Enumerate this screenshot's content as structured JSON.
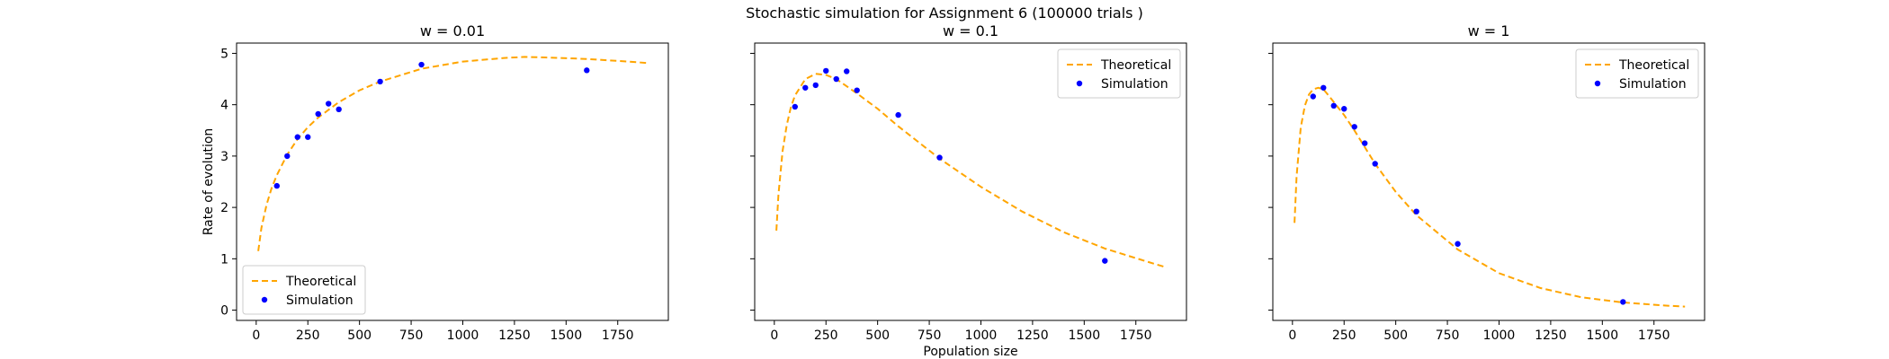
{
  "figure": {
    "suptitle": "Stochastic simulation for Assignment 6 (100000 trials )"
  },
  "colors": {
    "theoretical": "#ffa500",
    "simulation": "#0000ff",
    "axes": "#000000"
  },
  "chart_data": [
    {
      "type": "line+scatter",
      "title": "w = 0.01",
      "xlabel": "",
      "ylabel": "Rate of evolution",
      "xlim": [
        -95,
        1995
      ],
      "ylim": [
        -0.2,
        5.2
      ],
      "xticks": [
        0,
        250,
        500,
        750,
        1000,
        1250,
        1500,
        1750
      ],
      "yticks": [
        0,
        1,
        2,
        3,
        4,
        5
      ],
      "show_ytick_labels": true,
      "legend": {
        "position": "lower-left",
        "entries": [
          "Theoretical",
          "Simulation"
        ]
      },
      "series": [
        {
          "name": "Theoretical",
          "style": "dashed-line",
          "x": [
            10,
            25,
            50,
            75,
            100,
            150,
            200,
            250,
            300,
            400,
            500,
            600,
            800,
            1000,
            1200,
            1300,
            1400,
            1600,
            1800,
            1900
          ],
          "y": [
            1.15,
            1.6,
            2.05,
            2.38,
            2.63,
            3.03,
            3.33,
            3.56,
            3.75,
            4.05,
            4.28,
            4.45,
            4.7,
            4.84,
            4.91,
            4.93,
            4.92,
            4.89,
            4.84,
            4.81
          ]
        },
        {
          "name": "Simulation",
          "style": "points",
          "x": [
            100,
            150,
            200,
            250,
            300,
            350,
            400,
            600,
            800,
            1600
          ],
          "y": [
            2.42,
            3.0,
            3.37,
            3.37,
            3.82,
            4.02,
            3.91,
            4.45,
            4.78,
            4.67
          ]
        }
      ]
    },
    {
      "type": "line+scatter",
      "title": "w = 0.1",
      "xlabel": "Population size",
      "ylabel": "",
      "xlim": [
        -95,
        1995
      ],
      "ylim": [
        -0.2,
        5.2
      ],
      "xticks": [
        0,
        250,
        500,
        750,
        1000,
        1250,
        1500,
        1750
      ],
      "yticks": [
        0,
        1,
        2,
        3,
        4,
        5
      ],
      "show_ytick_labels": false,
      "legend": {
        "position": "upper-right",
        "entries": [
          "Theoretical",
          "Simulation"
        ]
      },
      "series": [
        {
          "name": "Theoretical",
          "style": "dashed-line",
          "x": [
            10,
            20,
            40,
            60,
            80,
            100,
            150,
            200,
            250,
            300,
            400,
            500,
            600,
            800,
            1000,
            1200,
            1400,
            1600,
            1800,
            1900
          ],
          "y": [
            1.55,
            2.25,
            3.1,
            3.6,
            3.95,
            4.18,
            4.5,
            4.6,
            4.58,
            4.5,
            4.22,
            3.92,
            3.58,
            2.95,
            2.4,
            1.92,
            1.52,
            1.2,
            0.95,
            0.83
          ]
        },
        {
          "name": "Simulation",
          "style": "points",
          "x": [
            100,
            150,
            200,
            250,
            300,
            350,
            400,
            600,
            800,
            1600
          ],
          "y": [
            3.96,
            4.33,
            4.38,
            4.66,
            4.5,
            4.65,
            4.28,
            3.8,
            2.97,
            0.96
          ]
        }
      ]
    },
    {
      "type": "line+scatter",
      "title": "w = 1",
      "xlabel": "",
      "ylabel": "",
      "xlim": [
        -95,
        1995
      ],
      "ylim": [
        -0.2,
        5.2
      ],
      "xticks": [
        0,
        250,
        500,
        750,
        1000,
        1250,
        1500,
        1750
      ],
      "yticks": [
        0,
        1,
        2,
        3,
        4,
        5
      ],
      "show_ytick_labels": false,
      "legend": {
        "position": "upper-right",
        "entries": [
          "Theoretical",
          "Simulation"
        ]
      },
      "series": [
        {
          "name": "Theoretical",
          "style": "dashed-line",
          "x": [
            10,
            20,
            40,
            60,
            80,
            100,
            125,
            150,
            175,
            200,
            250,
            300,
            400,
            500,
            600,
            800,
            1000,
            1200,
            1400,
            1600,
            1800,
            1900
          ],
          "y": [
            1.7,
            2.6,
            3.55,
            3.98,
            4.2,
            4.3,
            4.33,
            4.3,
            4.18,
            4.05,
            3.8,
            3.5,
            2.85,
            2.3,
            1.85,
            1.18,
            0.72,
            0.43,
            0.25,
            0.15,
            0.09,
            0.07
          ]
        },
        {
          "name": "Simulation",
          "style": "points",
          "x": [
            100,
            150,
            200,
            250,
            300,
            350,
            400,
            600,
            800,
            1600
          ],
          "y": [
            4.16,
            4.33,
            3.98,
            3.92,
            3.57,
            3.25,
            2.85,
            1.92,
            1.29,
            0.16
          ]
        }
      ]
    }
  ]
}
